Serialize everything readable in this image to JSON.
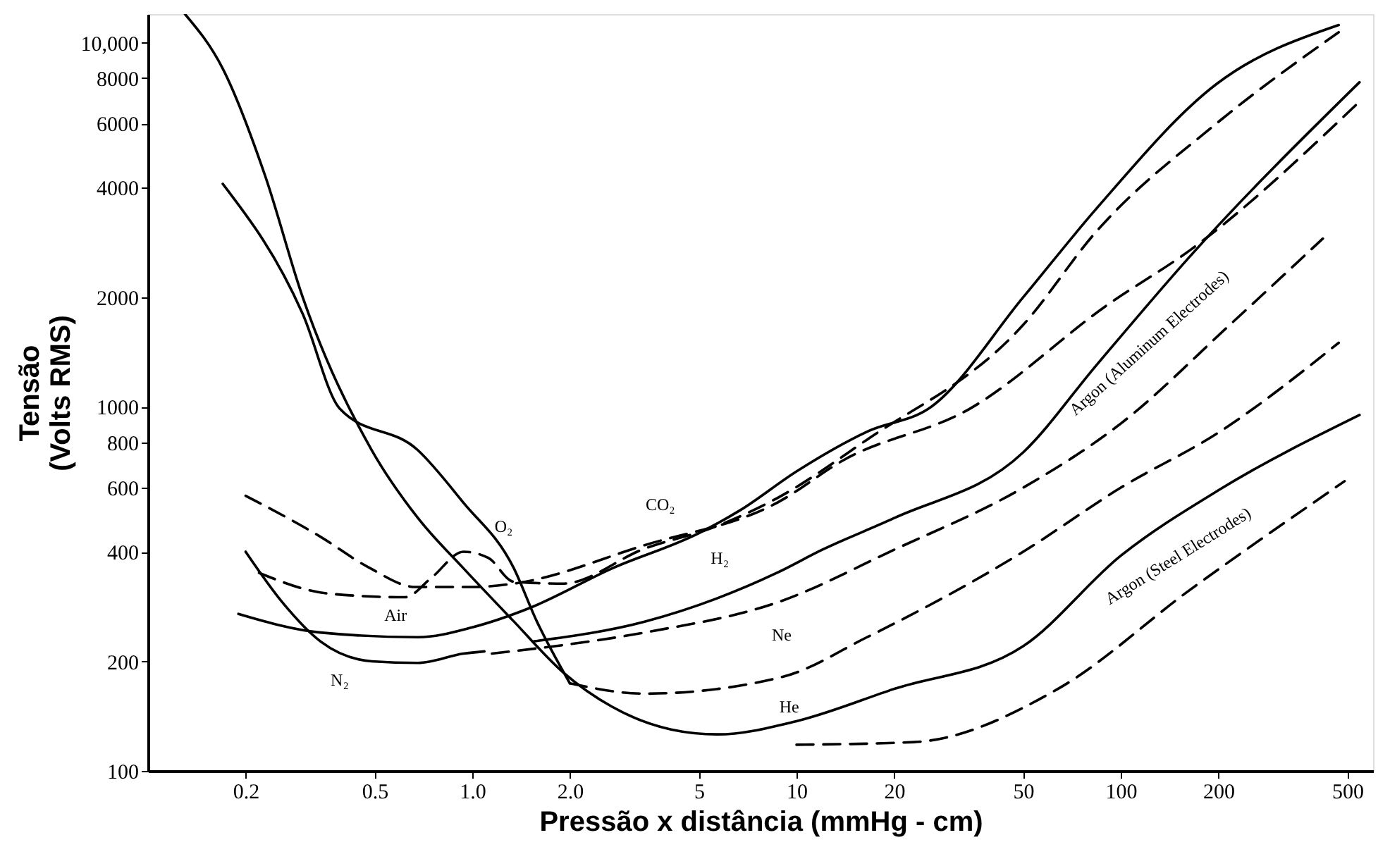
{
  "chart_data": {
    "type": "line",
    "xlabel": "Pressão x distância (mmHg - cm)",
    "ylabel": "Tensão\n(Volts RMS)",
    "log": "xy",
    "grid": false,
    "marker": "none",
    "xlim": [
      0.1,
      600
    ],
    "ylim": [
      100,
      12000
    ],
    "xticks": [
      0.2,
      0.5,
      {
        "value": 1,
        "label": "1.0"
      },
      {
        "value": 2,
        "label": "2.0"
      },
      5,
      10,
      20,
      50,
      100,
      200,
      500
    ],
    "yticks": [
      100,
      200,
      400,
      600,
      800,
      1000,
      2000,
      4000,
      6000,
      8000,
      {
        "value": 10000,
        "label": "10,000"
      }
    ],
    "series": [
      {
        "color": "#000000",
        "line_style": "solid",
        "x": [
          0.13,
          0.17,
          0.23,
          0.3,
          0.49,
          0.68,
          0.94,
          1.34,
          1.9,
          2.7,
          4.1,
          5.7,
          10,
          20,
          50,
          100,
          200,
          545
        ],
        "values": [
          12000,
          8500,
          4300,
          2000,
          760,
          495,
          360,
          258,
          187,
          150,
          130,
          126,
          137,
          168,
          220,
          390,
          590,
          950
        ]
      },
      {
        "color": "#000000",
        "line_style": "solid",
        "x": [
          0.17,
          0.3,
          0.39,
          0.68,
          0.94,
          1.34,
          1.58,
          2.0
        ],
        "values": [
          4100,
          1800,
          990,
          760,
          545,
          362,
          258,
          174
        ]
      },
      {
        "color": "#000000",
        "line_style": "dashed",
        "x": [
          2.0,
          3.4,
          9,
          16.5,
          50,
          100,
          200,
          470
        ],
        "values": [
          174,
          163,
          181,
          233,
          400,
          600,
          850,
          1500
        ]
      },
      {
        "color": "#000000",
        "line_style": "solid",
        "x": [
          0.2,
          0.26,
          0.34,
          0.49,
          0.68,
          0.94,
          1.09
        ],
        "values": [
          400,
          290,
          227,
          200,
          198,
          210,
          213
        ]
      },
      {
        "color": "#000000",
        "line_style": "dashed",
        "x": [
          1.15,
          3.4,
          8.7,
          20,
          50,
          100,
          220,
          420
        ],
        "values": [
          210,
          240,
          290,
          405,
          600,
          900,
          1700,
          2900
        ]
      },
      {
        "color": "#000000",
        "line_style": "solid",
        "x": [
          0.19,
          0.34,
          0.68,
          1.0,
          1.5,
          2.7,
          5,
          6.7,
          10,
          16.5,
          26,
          50,
          84,
          197,
          470
        ],
        "values": [
          270,
          240,
          233,
          248,
          280,
          360,
          450,
          520,
          665,
          855,
          1000,
          2000,
          3500,
          7700,
          11200
        ]
      },
      {
        "color": "#000000",
        "line_style": "solid",
        "x": [
          1.55,
          3.4,
          8.7,
          12,
          20,
          50,
          84,
          164,
          545
        ],
        "values": [
          227,
          257,
          350,
          405,
          495,
          750,
          1300,
          2600,
          7800
        ]
      },
      {
        "color": "#000000",
        "line_style": "dashed",
        "x": [
          0.22,
          0.36,
          0.62,
          0.75,
          0.94,
          1.12,
          1.34,
          1.9,
          3.4,
          5.7,
          8.7,
          16.5,
          50,
          84,
          197,
          470
        ],
        "values": [
          350,
          307,
          300,
          340,
          400,
          385,
          331,
          327,
          408,
          471,
          561,
          813,
          1680,
          3030,
          6000,
          10700
        ]
      },
      {
        "color": "#000000",
        "line_style": "dashed",
        "x": [
          0.2,
          0.34,
          0.48,
          0.67,
          1.0,
          1.34,
          3.4,
          8.7,
          14,
          34,
          92,
          164,
          545
        ],
        "values": [
          570,
          440,
          362,
          320,
          320,
          327,
          417,
          545,
          715,
          985,
          1920,
          2700,
          6900
        ]
      },
      {
        "color": "#000000",
        "line_style": "dashed",
        "x": [
          10,
          23,
          64,
          164,
          490
        ],
        "values": [
          118,
          120,
          168,
          315,
          625
        ]
      }
    ],
    "annotations": [
      "CO₂",
      "O₂",
      "H₂",
      "Air",
      "N₂",
      "Ne",
      "He",
      "Argon (Aluminum Electrodes)",
      "Argon (Steel Electrodes)"
    ]
  }
}
